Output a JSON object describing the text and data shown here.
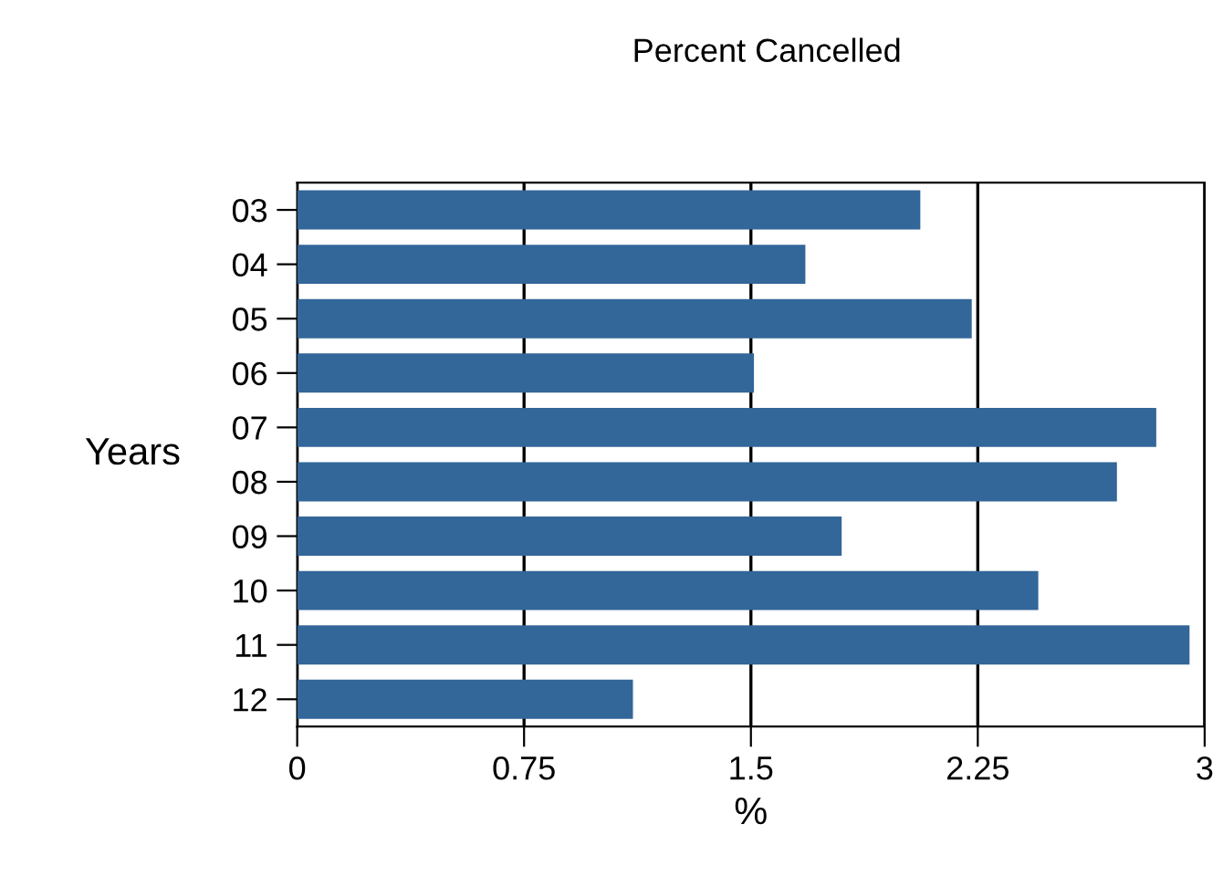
{
  "chart_data": {
    "type": "bar",
    "orientation": "horizontal",
    "title": "Percent Cancelled",
    "xlabel": "%",
    "ylabel": "Years",
    "categories": [
      "03",
      "04",
      "05",
      "06",
      "07",
      "08",
      "09",
      "10",
      "11",
      "12"
    ],
    "series": [
      {
        "color": "#336699",
        "values": [
          2.06,
          1.68,
          2.23,
          1.51,
          2.84,
          2.71,
          1.8,
          2.45,
          2.95,
          1.11
        ]
      }
    ],
    "xlim": [
      0,
      3
    ],
    "xticks": [
      0,
      0.75,
      1.5,
      2.25,
      3
    ],
    "grid": "x",
    "legend": false
  }
}
